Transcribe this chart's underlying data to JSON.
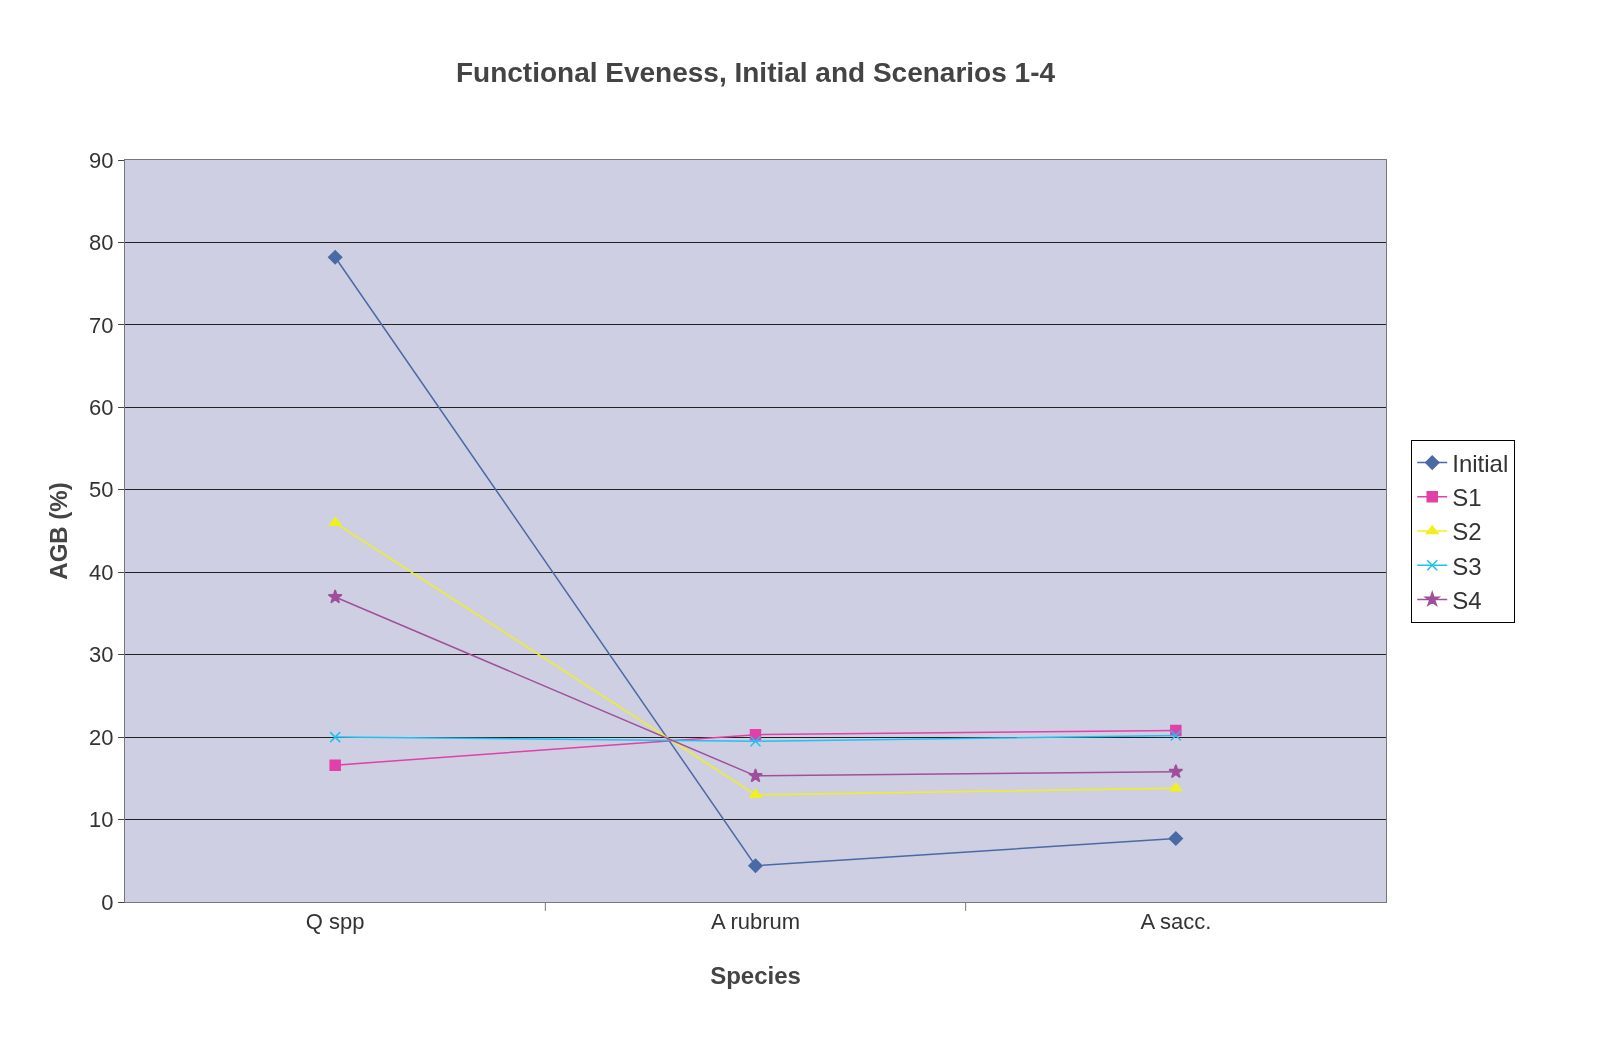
{
  "chart_data": {
    "type": "line",
    "title": "Functional Eveness, Initial and Scenarios 1-4",
    "xlabel": "Species",
    "ylabel": "AGB (%)",
    "categories": [
      "Q spp",
      "A rubrum",
      "A sacc."
    ],
    "series": [
      {
        "name": "Initial",
        "color": "#4a6aa5",
        "marker": "diamond",
        "values": [
          78.2,
          4.4,
          7.7
        ]
      },
      {
        "name": "S1",
        "color": "#e040a8",
        "marker": "square",
        "values": [
          16.6,
          20.3,
          20.8
        ]
      },
      {
        "name": "S2",
        "color": "#f0f020",
        "marker": "triangle",
        "values": [
          46,
          13,
          13.8
        ]
      },
      {
        "name": "S3",
        "color": "#20c0f0",
        "marker": "cross",
        "values": [
          20,
          19.5,
          20.2
        ]
      },
      {
        "name": "S4",
        "color": "#a0509a",
        "marker": "star",
        "values": [
          37,
          15.3,
          15.8
        ]
      }
    ],
    "ylim": [
      0,
      90
    ],
    "yticks": [
      0,
      10,
      20,
      30,
      40,
      50,
      60,
      70,
      80,
      90
    ],
    "grid": "y",
    "legend": "right",
    "line_style": "solid"
  }
}
